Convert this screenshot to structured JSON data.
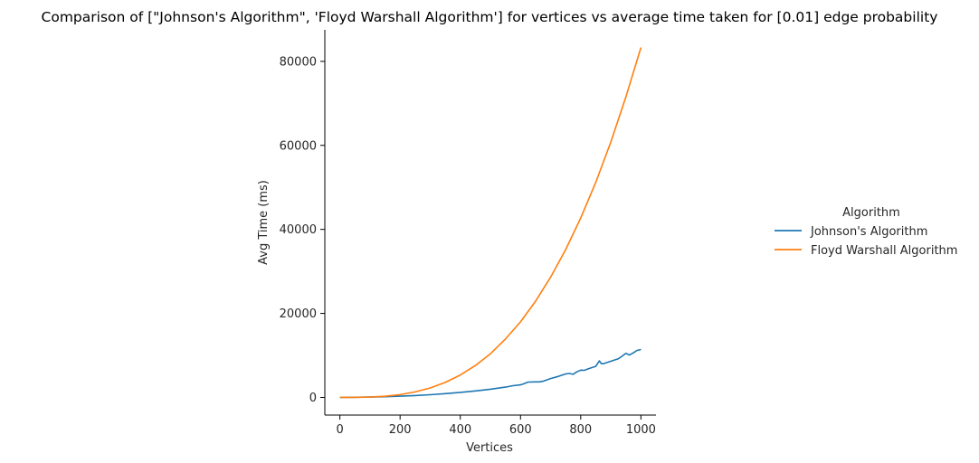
{
  "chart_data": {
    "type": "line",
    "title": "Comparison of [\"Johnson's Algorithm\", 'Floyd Warshall Algorithm'] for vertices vs average time taken for [0.01] edge probability",
    "xlabel": "Vertices",
    "ylabel": "Avg Time (ms)",
    "xlim": [
      -50,
      1050
    ],
    "ylim": [
      -4200,
      87500
    ],
    "xticks": [
      0,
      200,
      400,
      600,
      800,
      1000
    ],
    "yticks": [
      0,
      20000,
      40000,
      60000,
      80000
    ],
    "grid": false,
    "legend": {
      "title": "Algorithm",
      "placement": "right"
    },
    "series": [
      {
        "name": "Johnson's Algorithm",
        "color": "#1f77b4",
        "x": [
          0,
          50,
          100,
          150,
          200,
          250,
          300,
          350,
          400,
          450,
          500,
          550,
          575,
          600,
          612,
          625,
          650,
          662,
          675,
          700,
          725,
          750,
          762,
          775,
          787,
          800,
          812,
          825,
          837,
          850,
          862,
          868,
          875,
          887,
          900,
          912,
          925,
          937,
          950,
          962,
          975,
          987,
          1000
        ],
        "y": [
          0,
          30,
          80,
          170,
          290,
          450,
          650,
          900,
          1200,
          1550,
          1950,
          2450,
          2800,
          3000,
          3300,
          3650,
          3700,
          3700,
          3850,
          4500,
          5000,
          5600,
          5700,
          5500,
          6100,
          6500,
          6450,
          6800,
          7100,
          7400,
          8700,
          8100,
          8000,
          8300,
          8600,
          8900,
          9200,
          9800,
          10500,
          10100,
          10600,
          11200,
          11400
        ]
      },
      {
        "name": "Floyd Warshall Algorithm",
        "color": "#ff7f0e",
        "x": [
          0,
          50,
          100,
          150,
          200,
          250,
          300,
          350,
          400,
          450,
          500,
          550,
          600,
          650,
          700,
          750,
          800,
          850,
          900,
          950,
          1000
        ],
        "y": [
          0,
          10,
          85,
          280,
          670,
          1300,
          2250,
          3580,
          5340,
          7600,
          10400,
          13900,
          18000,
          22900,
          28600,
          35200,
          42700,
          51200,
          60800,
          71500,
          83300
        ]
      }
    ]
  }
}
